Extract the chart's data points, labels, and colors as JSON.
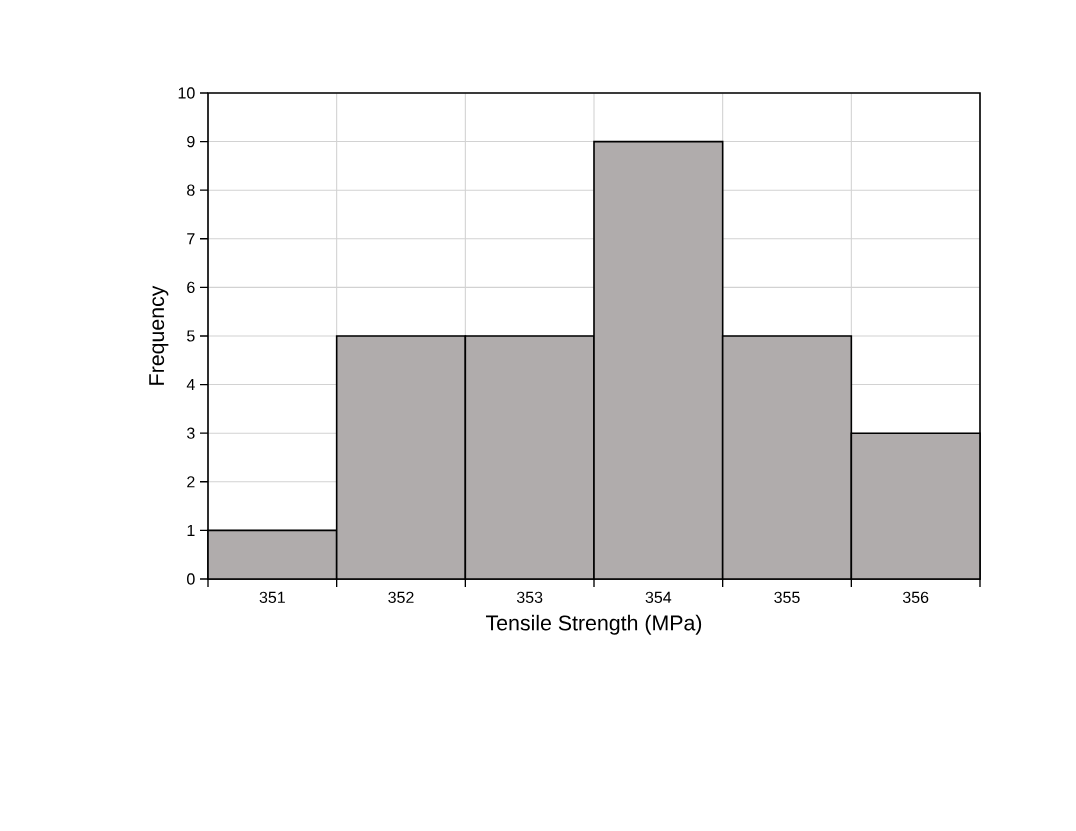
{
  "chart_data": {
    "type": "bar",
    "xlabel": "Tensile Strength (MPa)",
    "ylabel": "Frequency",
    "categories": [
      "351",
      "352",
      "353",
      "354",
      "355",
      "356"
    ],
    "values": [
      1,
      5,
      5,
      9,
      5,
      3
    ],
    "color": "#b0acac",
    "ylim": [
      0,
      10
    ],
    "yticks": [
      0,
      1,
      2,
      3,
      4,
      5,
      6,
      7,
      8,
      9,
      10
    ],
    "grid": true
  }
}
